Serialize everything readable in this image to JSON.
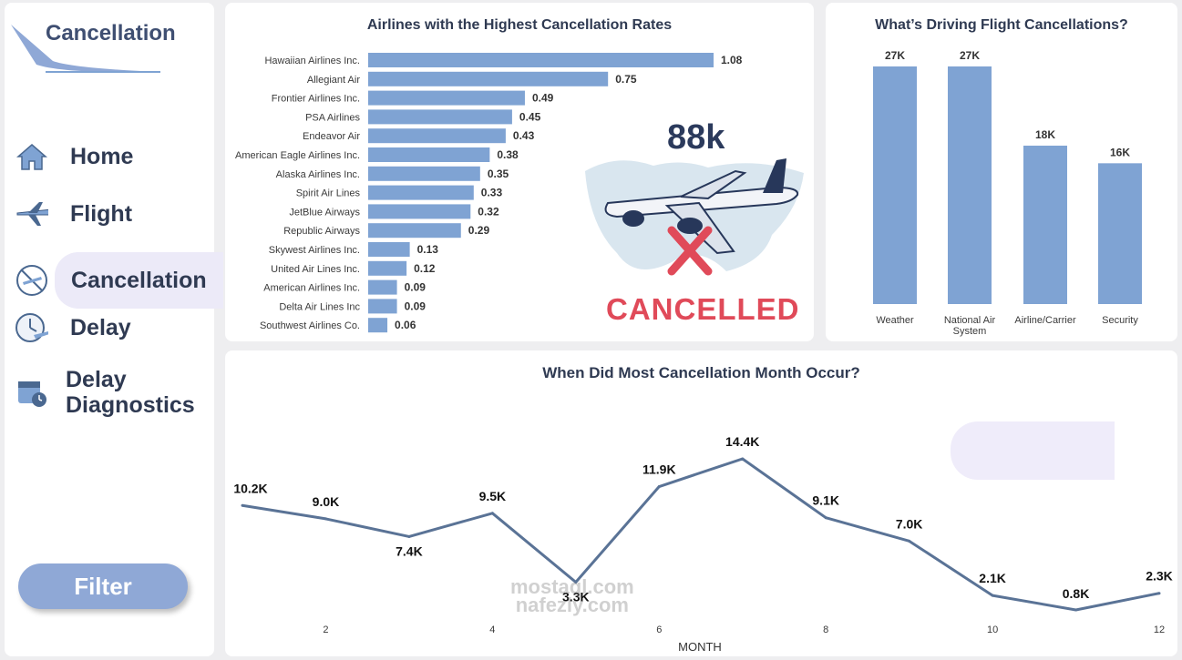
{
  "sidebar": {
    "brand": "Cancellation",
    "nav": [
      {
        "label": "Home",
        "icon": "home-icon"
      },
      {
        "label": "Flight",
        "icon": "airplane-icon"
      },
      {
        "label": "Cancellation",
        "icon": "cancelled-flight-icon",
        "active": true
      },
      {
        "label": "Delay",
        "icon": "clock-airplane-icon"
      },
      {
        "label": "Delay\nDiagnostics",
        "icon": "calendar-clock-icon"
      }
    ],
    "filter_label": "Filter"
  },
  "airlines_card": {
    "kpi": "88k",
    "stamp": "CANCELLED"
  },
  "watermark": [
    "mostaql.com",
    "nafezly.com"
  ],
  "colors": {
    "bar": "#7fa3d3",
    "line": "#5a7396",
    "accent_red": "#e04a59",
    "title": "#2f3a52"
  },
  "chart_data": [
    {
      "type": "bar",
      "orientation": "horizontal",
      "title": "Airlines with the Highest Cancellation Rates",
      "categories": [
        "Hawaiian Airlines Inc.",
        "Allegiant Air",
        "Frontier Airlines Inc.",
        "PSA Airlines",
        "Endeavor Air",
        "American Eagle Airlines Inc.",
        "Alaska Airlines Inc.",
        "Spirit Air Lines",
        "JetBlue Airways",
        "Republic Airways",
        "Skywest Airlines Inc.",
        "United Air Lines Inc.",
        "American Airlines Inc.",
        "Delta Air Lines Inc",
        "Southwest Airlines Co."
      ],
      "values": [
        1.08,
        0.75,
        0.49,
        0.45,
        0.43,
        0.38,
        0.35,
        0.33,
        0.32,
        0.29,
        0.13,
        0.12,
        0.09,
        0.09,
        0.06
      ],
      "labels": [
        "1.08",
        "0.75",
        "0.49",
        "0.45",
        "0.43",
        "0.38",
        "0.35",
        "0.33",
        "0.32",
        "0.29",
        "0.13",
        "0.12",
        "0.09",
        "0.09",
        "0.06"
      ],
      "xlim": [
        0,
        1.08
      ]
    },
    {
      "type": "bar",
      "title": "What’s Driving Flight Cancellations?",
      "categories": [
        "Weather",
        "National Air System",
        "Airline/Carrier",
        "Security"
      ],
      "values": [
        27,
        27,
        18,
        16
      ],
      "labels": [
        "27K",
        "27K",
        "18K",
        "16K"
      ],
      "ylim": [
        0,
        27
      ]
    },
    {
      "type": "line",
      "title": "When Did Most Cancellation Month Occur?",
      "xlabel": "MONTH",
      "x": [
        1,
        2,
        3,
        4,
        5,
        6,
        7,
        8,
        9,
        10,
        11,
        12
      ],
      "values": [
        10.2,
        9.0,
        7.4,
        9.5,
        3.3,
        11.9,
        14.4,
        9.1,
        7.0,
        2.1,
        0.8,
        2.3
      ],
      "labels": [
        "10.2K",
        "9.0K",
        "7.4K",
        "9.5K",
        "3.3K",
        "11.9K",
        "14.4K",
        "9.1K",
        "7.0K",
        "2.1K",
        "0.8K",
        "2.3K"
      ],
      "xticks": [
        "2",
        "4",
        "6",
        "8",
        "10",
        "12"
      ],
      "ylim": [
        0.8,
        14.4
      ]
    }
  ]
}
